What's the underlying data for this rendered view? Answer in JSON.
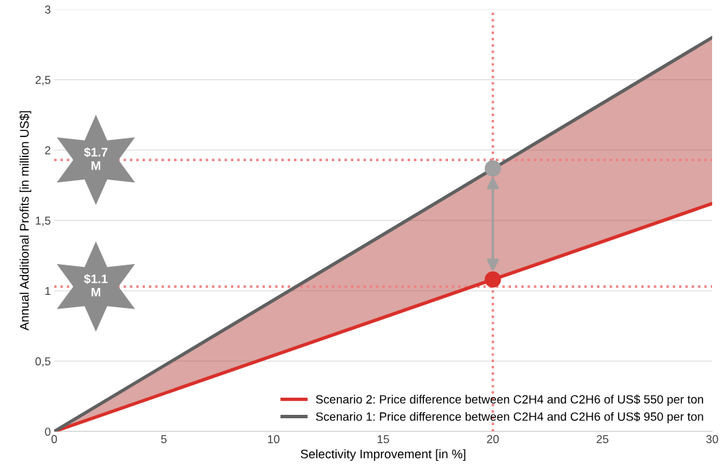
{
  "chart_data": {
    "type": "line",
    "xlabel": "Selectivity Improvement [in %]",
    "ylabel": "Annual Additional Profits [in million US$]",
    "x": [
      0,
      30
    ],
    "series": [
      {
        "name": "Scenario 2: Price difference between C2H4 and C2H6 of US$ 550 per ton",
        "color": "#d9302b",
        "values": [
          0,
          1.62
        ]
      },
      {
        "name": "Scenario 1: Price difference between C2H4 and C2H6 of US$ 950 per ton",
        "color": "#606060",
        "values": [
          0,
          2.8
        ]
      },
      {
        "type": "scatter",
        "marker": "circle",
        "x": [
          20
        ],
        "color": "#a0a0a0",
        "values": [
          1.87
        ]
      },
      {
        "type": "scatter",
        "marker": "circle",
        "x": [
          20
        ],
        "color": "#d9302b",
        "values": [
          1.08
        ]
      }
    ],
    "ref_lines": [
      {
        "axis": "y",
        "value": 1.93,
        "color": "#f08080",
        "line_style": "dotted"
      },
      {
        "axis": "y",
        "value": 1.03,
        "color": "#f08080",
        "line_style": "dotted"
      },
      {
        "axis": "x",
        "value": 20,
        "color": "#f08080",
        "line_style": "dotted"
      }
    ],
    "annotations": [
      {
        "text": "$1.7\nM",
        "x": 0,
        "y": 1.93
      },
      {
        "text": "$1.1\nM",
        "x": 0,
        "y": 1.03
      }
    ],
    "xlim": [
      0,
      30
    ],
    "xticks": [
      0,
      5,
      10,
      15,
      20,
      25,
      30
    ],
    "ylim": [
      0,
      3
    ],
    "yticks": [
      0,
      {
        "value": 0.5,
        "label": "0,5"
      },
      1,
      {
        "value": 1.5,
        "label": "1,5"
      },
      2,
      {
        "value": 2.5,
        "label": "2,5"
      },
      3
    ],
    "grid": "y",
    "legend": "bottom right",
    "marker": "none",
    "line_style": "solid"
  }
}
